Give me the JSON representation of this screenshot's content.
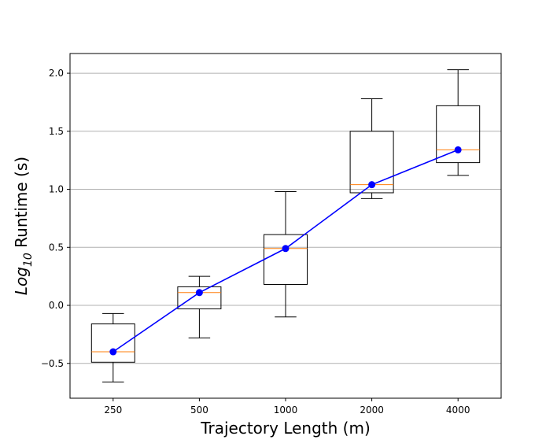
{
  "chart_data": {
    "type": "box",
    "xlabel": "Trajectory Length (m)",
    "ylabel_base": "Log",
    "ylabel_sub": "10",
    "ylabel_rest": " Runtime (s)",
    "ylim": [
      -0.8,
      2.17
    ],
    "yticks": [
      -0.5,
      0.0,
      0.5,
      1.0,
      1.5,
      2.0
    ],
    "ytick_labels": [
      "−0.5",
      "0.0",
      "0.5",
      "1.0",
      "1.5",
      "2.0"
    ],
    "grid": "horizontal",
    "categories": [
      "250",
      "500",
      "1000",
      "2000",
      "4000"
    ],
    "boxes": [
      {
        "whislo": -0.66,
        "q1": -0.49,
        "med": -0.4,
        "q3": -0.16,
        "whishi": -0.07
      },
      {
        "whislo": -0.28,
        "q1": -0.03,
        "med": 0.11,
        "q3": 0.16,
        "whishi": 0.25
      },
      {
        "whislo": -0.1,
        "q1": 0.18,
        "med": 0.49,
        "q3": 0.61,
        "whishi": 0.98
      },
      {
        "whislo": 0.92,
        "q1": 0.97,
        "med": 1.04,
        "q3": 1.5,
        "whishi": 1.78
      },
      {
        "whislo": 1.12,
        "q1": 1.23,
        "med": 1.34,
        "q3": 1.72,
        "whishi": 2.03
      }
    ],
    "line_series": {
      "values": [
        -0.4,
        0.11,
        0.49,
        1.04,
        1.34
      ]
    },
    "colors": {
      "box": "#000000",
      "median": "#ff7f0e",
      "line": "#0000ff",
      "grid": "#b0b0b0"
    }
  }
}
